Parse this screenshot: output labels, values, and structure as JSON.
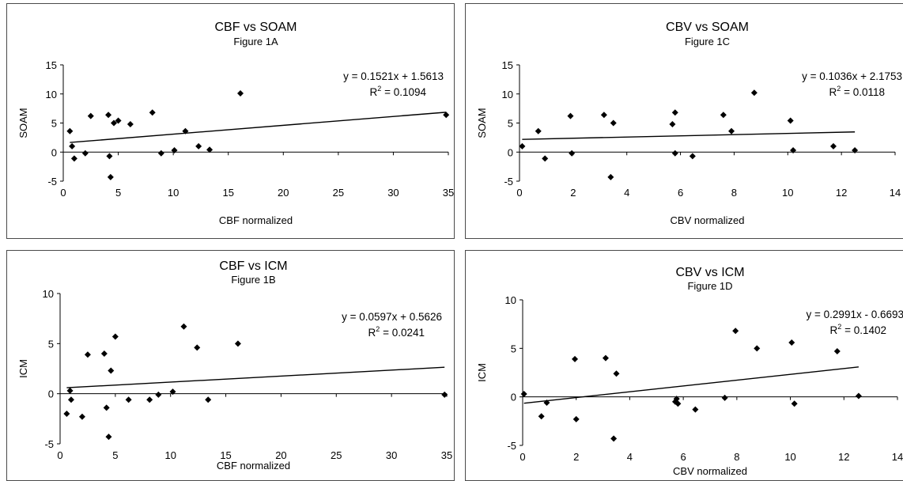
{
  "chart_data": [
    {
      "type": "scatter",
      "title": "CBF vs SOAM",
      "subtitle": "Figure 1A",
      "xlabel": "CBF normalized",
      "ylabel": "SOAM",
      "xlim": [
        0,
        35
      ],
      "ylim": [
        -5,
        15
      ],
      "xticks": [
        "0",
        "5",
        "10",
        "15",
        "20",
        "25",
        "30",
        "35"
      ],
      "yticks": [
        "-5",
        "0",
        "5",
        "10",
        "15"
      ],
      "trendline": {
        "slope": 0.1521,
        "intercept": 1.5613,
        "equation": "y = 0.1521x + 1.5613",
        "r2_label": "R",
        "r2_exp": "2",
        "r2_value": " = 0.1094"
      },
      "points": [
        [
          0.6,
          3.6
        ],
        [
          0.8,
          1.0
        ],
        [
          1.0,
          -1.1
        ],
        [
          2.0,
          -0.2
        ],
        [
          2.5,
          6.2
        ],
        [
          4.1,
          6.4
        ],
        [
          4.2,
          -0.7
        ],
        [
          4.3,
          -4.3
        ],
        [
          4.6,
          5.0
        ],
        [
          5.0,
          5.4
        ],
        [
          6.1,
          4.8
        ],
        [
          8.1,
          6.8
        ],
        [
          8.9,
          -0.2
        ],
        [
          10.1,
          0.3
        ],
        [
          11.1,
          3.6
        ],
        [
          12.3,
          1.0
        ],
        [
          13.3,
          0.4
        ],
        [
          16.1,
          10.1
        ],
        [
          34.8,
          6.4
        ]
      ]
    },
    {
      "type": "scatter",
      "title": "CBV vs SOAM",
      "subtitle": "Figure 1C",
      "xlabel": "CBV normalized",
      "ylabel": "SOAM",
      "xlim": [
        0,
        14
      ],
      "ylim": [
        -5,
        15
      ],
      "xticks": [
        "0",
        "2",
        "4",
        "6",
        "8",
        "10",
        "12",
        "14"
      ],
      "yticks": [
        "-5",
        "0",
        "5",
        "10",
        "15"
      ],
      "trendline": {
        "slope": 0.1036,
        "intercept": 2.1753,
        "equation": "y = 0.1036x + 2.1753",
        "r2_label": "R",
        "r2_exp": "2",
        "r2_value": " = 0.0118"
      },
      "points": [
        [
          0.1,
          1.0
        ],
        [
          0.7,
          3.6
        ],
        [
          0.95,
          -1.1
        ],
        [
          1.9,
          6.2
        ],
        [
          1.95,
          -0.2
        ],
        [
          3.15,
          6.4
        ],
        [
          3.4,
          -4.3
        ],
        [
          3.5,
          5.0
        ],
        [
          5.7,
          4.8
        ],
        [
          5.8,
          6.8
        ],
        [
          5.8,
          -0.2
        ],
        [
          6.45,
          -0.7
        ],
        [
          7.6,
          6.4
        ],
        [
          7.9,
          3.6
        ],
        [
          8.75,
          10.2
        ],
        [
          10.1,
          5.4
        ],
        [
          10.2,
          0.3
        ],
        [
          11.7,
          1.0
        ],
        [
          12.5,
          0.3
        ]
      ]
    },
    {
      "type": "scatter",
      "title": "CBF vs ICM",
      "subtitle": "Figure 1B",
      "xlabel": "CBF normalized",
      "ylabel": "ICM",
      "xlim": [
        0,
        35
      ],
      "ylim": [
        -5,
        10
      ],
      "xticks": [
        "0",
        "5",
        "10",
        "15",
        "20",
        "25",
        "30",
        "35"
      ],
      "yticks": [
        "-5",
        "0",
        "5",
        "10"
      ],
      "trendline": {
        "slope": 0.0597,
        "intercept": 0.5626,
        "equation": "y = 0.0597x + 0.5626",
        "r2_label": "R",
        "r2_exp": "2",
        "r2_value": " = 0.0241"
      },
      "points": [
        [
          0.6,
          -2.0
        ],
        [
          0.9,
          0.3
        ],
        [
          1.0,
          -0.6
        ],
        [
          2.0,
          -2.3
        ],
        [
          2.5,
          3.9
        ],
        [
          4.0,
          4.0
        ],
        [
          4.2,
          -1.4
        ],
        [
          4.4,
          -4.3
        ],
        [
          4.6,
          2.3
        ],
        [
          5.0,
          5.7
        ],
        [
          6.2,
          -0.6
        ],
        [
          8.1,
          -0.6
        ],
        [
          8.9,
          -0.1
        ],
        [
          10.2,
          0.2
        ],
        [
          11.2,
          6.7
        ],
        [
          12.4,
          4.6
        ],
        [
          13.4,
          -0.6
        ],
        [
          16.1,
          5.0
        ],
        [
          34.8,
          -0.1
        ]
      ]
    },
    {
      "type": "scatter",
      "title": "CBV vs ICM",
      "subtitle": "Figure 1D",
      "xlabel": "CBV normalized",
      "ylabel": "ICM",
      "xlim": [
        0,
        14
      ],
      "ylim": [
        -5,
        10
      ],
      "xticks": [
        "0",
        "2",
        "4",
        "6",
        "8",
        "10",
        "12",
        "14"
      ],
      "yticks": [
        "-5",
        "0",
        "5",
        "10"
      ],
      "trendline": {
        "slope": 0.2991,
        "intercept": -0.6693,
        "equation": "y = 0.2991x - 0.6693",
        "r2_label": "R",
        "r2_exp": "2",
        "r2_value": " = 0.1402"
      },
      "points": [
        [
          0.05,
          0.3
        ],
        [
          0.7,
          -2.0
        ],
        [
          0.9,
          -0.6
        ],
        [
          1.95,
          3.9
        ],
        [
          2.0,
          -2.3
        ],
        [
          3.1,
          4.0
        ],
        [
          3.4,
          -4.3
        ],
        [
          3.5,
          2.4
        ],
        [
          5.7,
          -0.5
        ],
        [
          5.75,
          -0.2
        ],
        [
          5.8,
          -0.7
        ],
        [
          6.45,
          -1.3
        ],
        [
          7.55,
          -0.1
        ],
        [
          7.95,
          6.8
        ],
        [
          8.75,
          5.0
        ],
        [
          10.05,
          5.6
        ],
        [
          10.15,
          -0.7
        ],
        [
          11.75,
          4.7
        ],
        [
          12.55,
          0.1
        ]
      ]
    }
  ]
}
